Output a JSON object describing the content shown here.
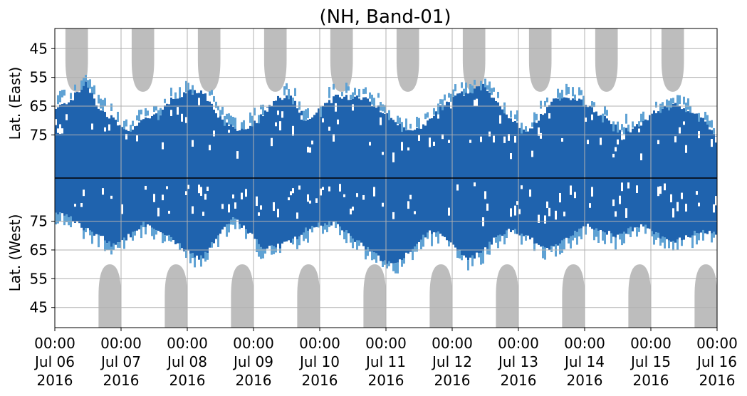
{
  "chart_data": {
    "type": "heatmap",
    "title": "(NH, Band-01)",
    "ylabel_top": "Lat. (East)",
    "ylabel_bottom": "Lat. (West)",
    "x_ticks": [
      {
        "time": "00:00",
        "date": "Jul 06",
        "year": "2016"
      },
      {
        "time": "00:00",
        "date": "Jul 07",
        "year": "2016"
      },
      {
        "time": "00:00",
        "date": "Jul 08",
        "year": "2016"
      },
      {
        "time": "00:00",
        "date": "Jul 09",
        "year": "2016"
      },
      {
        "time": "00:00",
        "date": "Jul 10",
        "year": "2016"
      },
      {
        "time": "00:00",
        "date": "Jul 11",
        "year": "2016"
      },
      {
        "time": "00:00",
        "date": "Jul 12",
        "year": "2016"
      },
      {
        "time": "00:00",
        "date": "Jul 13",
        "year": "2016"
      },
      {
        "time": "00:00",
        "date": "Jul 14",
        "year": "2016"
      },
      {
        "time": "00:00",
        "date": "Jul 15",
        "year": "2016"
      },
      {
        "time": "00:00",
        "date": "Jul 16",
        "year": "2016"
      }
    ],
    "x_range": [
      "2016-07-06 00:00",
      "2016-07-16 00:00"
    ],
    "y_ticks_top": [
      45,
      55,
      65,
      75
    ],
    "y_ticks_bottom": [
      75,
      65,
      55,
      45
    ],
    "y_range_top": [
      38,
      90
    ],
    "y_range_bottom": [
      90,
      38
    ],
    "grid": true,
    "colors": {
      "dense": "#1f63ae",
      "sparse": "#5fa2d4",
      "night_mask": "#bdbdbd",
      "grid": "#b0b0b0",
      "separator": "#000000"
    },
    "night_mask_top_centers_day": [
      0.33,
      1.33,
      2.33,
      3.33,
      4.33,
      5.33,
      6.33,
      7.33,
      8.33,
      9.33
    ],
    "night_mask_bottom_centers_day": [
      0.83,
      1.83,
      2.83,
      3.83,
      4.83,
      5.83,
      6.83,
      7.83,
      8.83,
      9.83
    ],
    "night_mask_top_edge_lat": 60,
    "night_mask_bottom_edge_lat": 60,
    "activity_top_edge_lat": [
      66,
      63,
      57,
      66,
      70,
      74,
      70,
      68,
      62,
      60,
      60,
      68,
      72,
      74,
      68,
      62,
      62,
      70,
      66,
      62,
      62,
      62,
      66,
      70,
      74,
      72,
      66,
      62,
      60,
      58,
      64,
      70,
      74,
      68,
      62,
      62,
      64,
      68,
      72,
      74,
      70,
      66,
      64,
      66,
      70,
      76
    ],
    "activity_bottom_edge_lat": [
      78,
      76,
      72,
      70,
      66,
      70,
      74,
      72,
      68,
      64,
      62,
      70,
      76,
      72,
      66,
      66,
      68,
      72,
      74,
      74,
      70,
      66,
      62,
      60,
      64,
      70,
      72,
      66,
      62,
      64,
      70,
      72,
      70,
      66,
      66,
      70,
      74,
      72,
      70,
      72,
      74,
      70,
      68,
      70,
      72,
      70
    ]
  }
}
